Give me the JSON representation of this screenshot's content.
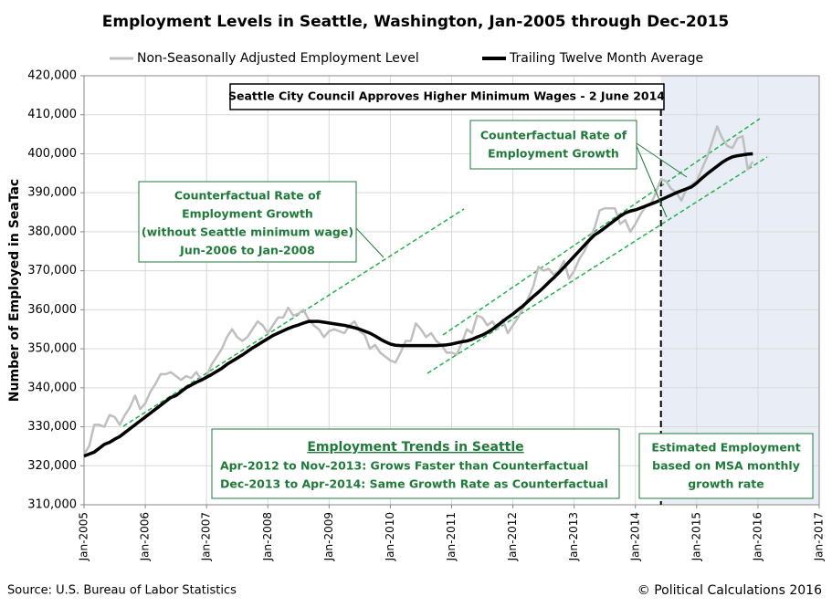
{
  "chart_data": {
    "type": "line",
    "title": "Employment Levels in Seattle, Washington, Jan-2005 through Dec-2015",
    "y_label": "Number of Employed in SeaTac",
    "source": "Source: U.S. Bureau of Labor Statistics",
    "credit": "© Political Calculations 2016",
    "annotations": {
      "event": "Seattle City Council Approves Higher Minimum Wages - 2 June 2014",
      "counterfactual_early": [
        "Counterfactual Rate of",
        "Employment Growth",
        "(without Seattle minimum wage)",
        "Jun-2006 to Jan-2008"
      ],
      "counterfactual_recent": [
        "Counterfactual Rate of",
        "Employment Growth"
      ],
      "trends_title": "Employment Trends in Seattle",
      "trends": [
        "Apr-2012 to Nov-2013: Grows Faster than Counterfactual",
        "Dec-2013 to Apr-2014: Same Growth Rate as Counterfactual"
      ],
      "estimate_note": [
        "Estimated Employment",
        "based on MSA monthly",
        "growth rate"
      ]
    },
    "grid": true,
    "xlim": [
      "2005-01",
      "2017-01"
    ],
    "xticks": [
      {
        "value": "2005-01",
        "label": "Jan-2005"
      },
      {
        "value": "2006-01",
        "label": "Jan-2006"
      },
      {
        "value": "2007-01",
        "label": "Jan-2007"
      },
      {
        "value": "2008-01",
        "label": "Jan-2008"
      },
      {
        "value": "2009-01",
        "label": "Jan-2009"
      },
      {
        "value": "2010-01",
        "label": "Jan-2010"
      },
      {
        "value": "2011-01",
        "label": "Jan-2011"
      },
      {
        "value": "2012-01",
        "label": "Jan-2012"
      },
      {
        "value": "2013-01",
        "label": "Jan-2013"
      },
      {
        "value": "2014-01",
        "label": "Jan-2014"
      },
      {
        "value": "2015-01",
        "label": "Jan-2015"
      },
      {
        "value": "2016-01",
        "label": "Jan-2016"
      },
      {
        "value": "2017-01",
        "label": "Jan-2017"
      }
    ],
    "ylim": [
      310000,
      420000
    ],
    "yticks": [
      {
        "value": 310000,
        "label": "310,000"
      },
      {
        "value": 320000,
        "label": "320,000"
      },
      {
        "value": 330000,
        "label": "330,000"
      },
      {
        "value": 340000,
        "label": "340,000"
      },
      {
        "value": 350000,
        "label": "350,000"
      },
      {
        "value": 360000,
        "label": "360,000"
      },
      {
        "value": 370000,
        "label": "370,000"
      },
      {
        "value": 380000,
        "label": "380,000"
      },
      {
        "value": 390000,
        "label": "390,000"
      },
      {
        "value": 400000,
        "label": "400,000"
      },
      {
        "value": 410000,
        "label": "410,000"
      },
      {
        "value": 420000,
        "label": "420,000"
      }
    ],
    "x": [
      "2005-01",
      "2005-02",
      "2005-03",
      "2005-04",
      "2005-05",
      "2005-06",
      "2005-07",
      "2005-08",
      "2005-09",
      "2005-10",
      "2005-11",
      "2005-12",
      "2006-01",
      "2006-02",
      "2006-03",
      "2006-04",
      "2006-05",
      "2006-06",
      "2006-07",
      "2006-08",
      "2006-09",
      "2006-10",
      "2006-11",
      "2006-12",
      "2007-01",
      "2007-02",
      "2007-03",
      "2007-04",
      "2007-05",
      "2007-06",
      "2007-07",
      "2007-08",
      "2007-09",
      "2007-10",
      "2007-11",
      "2007-12",
      "2008-01",
      "2008-02",
      "2008-03",
      "2008-04",
      "2008-05",
      "2008-06",
      "2008-07",
      "2008-08",
      "2008-09",
      "2008-10",
      "2008-11",
      "2008-12",
      "2009-01",
      "2009-02",
      "2009-03",
      "2009-04",
      "2009-05",
      "2009-06",
      "2009-07",
      "2009-08",
      "2009-09",
      "2009-10",
      "2009-11",
      "2009-12",
      "2010-01",
      "2010-02",
      "2010-03",
      "2010-04",
      "2010-05",
      "2010-06",
      "2010-07",
      "2010-08",
      "2010-09",
      "2010-10",
      "2010-11",
      "2010-12",
      "2011-01",
      "2011-02",
      "2011-03",
      "2011-04",
      "2011-05",
      "2011-06",
      "2011-07",
      "2011-08",
      "2011-09",
      "2011-10",
      "2011-11",
      "2011-12",
      "2012-01",
      "2012-02",
      "2012-03",
      "2012-04",
      "2012-05",
      "2012-06",
      "2012-07",
      "2012-08",
      "2012-09",
      "2012-10",
      "2012-11",
      "2012-12",
      "2013-01",
      "2013-02",
      "2013-03",
      "2013-04",
      "2013-05",
      "2013-06",
      "2013-07",
      "2013-08",
      "2013-09",
      "2013-10",
      "2013-11",
      "2013-12",
      "2014-01",
      "2014-02",
      "2014-03",
      "2014-04",
      "2014-05",
      "2014-06",
      "2014-07",
      "2014-08",
      "2014-09",
      "2014-10",
      "2014-11",
      "2014-12",
      "2015-01",
      "2015-02",
      "2015-03",
      "2015-04",
      "2015-05",
      "2015-06",
      "2015-07",
      "2015-08",
      "2015-09",
      "2015-10",
      "2015-11",
      "2015-12"
    ],
    "series": [
      {
        "name": "Non-Seasonally Adjusted Employment Level",
        "color": "#bfbfbf",
        "width": 2.5,
        "values": [
          323000,
          325000,
          330500,
          330500,
          330000,
          333000,
          332500,
          330500,
          333000,
          335000,
          338000,
          334500,
          336000,
          339000,
          341000,
          343500,
          343500,
          344000,
          343000,
          342000,
          343000,
          342500,
          344000,
          342000,
          343000,
          346000,
          348000,
          350000,
          353000,
          355000,
          353000,
          352000,
          353000,
          355000,
          357000,
          356000,
          354000,
          356000,
          358000,
          358000,
          360500,
          358500,
          359000,
          360000,
          357500,
          356000,
          355000,
          353000,
          354500,
          355000,
          354500,
          354000,
          356000,
          357000,
          354500,
          353500,
          350000,
          351000,
          349000,
          348000,
          347000,
          346500,
          349000,
          352000,
          352000,
          356500,
          355000,
          353000,
          354000,
          352000,
          351000,
          349000,
          349000,
          348500,
          351500,
          355000,
          354000,
          358500,
          358000,
          356000,
          357000,
          355000,
          357500,
          354000,
          356000,
          358000,
          360500,
          363000,
          366000,
          371000,
          370000,
          370500,
          369000,
          370000,
          372500,
          368000,
          370000,
          373000,
          375000,
          378000,
          381000,
          385500,
          386000,
          386000,
          386000,
          382000,
          383000,
          380000,
          382000,
          384500,
          386500,
          387000,
          390000,
          393500,
          393000,
          391000,
          390000,
          388000,
          391000,
          392000,
          393000,
          396000,
          399000,
          403000,
          407000,
          404000,
          402000,
          401500,
          404000,
          404500,
          396000,
          398000
        ]
      },
      {
        "name": "Trailing Twelve Month Average",
        "color": "#000000",
        "width": 3.5,
        "values": [
          322500,
          323000,
          323500,
          324500,
          325500,
          326000,
          326800,
          327500,
          328500,
          329500,
          330500,
          331500,
          332500,
          333500,
          334500,
          335500,
          336500,
          337500,
          338000,
          339000,
          340000,
          340700,
          341400,
          342000,
          342700,
          343400,
          344200,
          345000,
          346000,
          346800,
          347600,
          348400,
          349300,
          350200,
          351000,
          351800,
          352600,
          353400,
          354000,
          354600,
          355200,
          355700,
          356100,
          356600,
          357000,
          357000,
          357000,
          356800,
          356600,
          356400,
          356200,
          356000,
          355700,
          355400,
          355000,
          354500,
          354000,
          353300,
          352500,
          351800,
          351200,
          350900,
          350800,
          350800,
          350800,
          350800,
          350800,
          350800,
          350800,
          350800,
          350900,
          351000,
          351200,
          351500,
          351800,
          352000,
          352400,
          353000,
          353500,
          354200,
          355000,
          356000,
          357000,
          358000,
          358900,
          360000,
          361000,
          362200,
          363400,
          364500,
          365700,
          367000,
          368200,
          369500,
          370900,
          372300,
          373700,
          375100,
          376500,
          377900,
          379200,
          380000,
          381000,
          382000,
          383000,
          384000,
          384800,
          385300,
          385600,
          386100,
          386600,
          387100,
          387600,
          388200,
          388800,
          389400,
          390000,
          390500,
          391000,
          391500,
          392500,
          393700,
          394800,
          395800,
          396800,
          397800,
          398600,
          399200,
          399500,
          399700,
          399900,
          400000
        ]
      }
    ]
  }
}
